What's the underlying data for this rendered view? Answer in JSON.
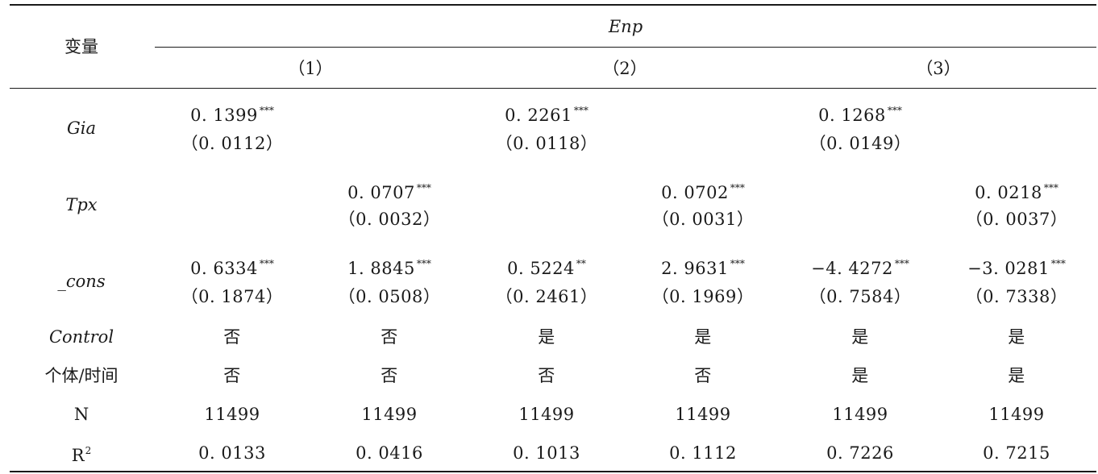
{
  "table": {
    "var_header": "变量",
    "group_header": "Enp",
    "col_groups": [
      "（1）",
      "（2）",
      "（3）"
    ],
    "rows": [
      {
        "label": "Gia",
        "italic": true,
        "coef": [
          "0. 1399",
          "",
          "0. 2261",
          "",
          "0. 1268",
          ""
        ],
        "stars": [
          "***",
          "",
          "***",
          "",
          "***",
          ""
        ],
        "se": [
          "（0. 0112）",
          "",
          "（0. 0118）",
          "",
          "（0. 0149）",
          ""
        ]
      },
      {
        "label": "Tpx",
        "italic": true,
        "coef": [
          "",
          "0. 0707",
          "",
          "0. 0702",
          "",
          "0. 0218"
        ],
        "stars": [
          "",
          "***",
          "",
          "***",
          "",
          "***"
        ],
        "se": [
          "",
          "（0. 0032）",
          "",
          "（0. 0031）",
          "",
          "（0. 0037）"
        ]
      },
      {
        "label": "_cons",
        "italic": true,
        "coef": [
          "0. 6334",
          "1. 8845",
          "0. 5224",
          "2. 9631",
          "−4. 4272",
          "−3. 0281"
        ],
        "stars": [
          "***",
          "***",
          "**",
          "***",
          "***",
          "***"
        ],
        "se": [
          "（0. 1874）",
          "（0. 0508）",
          "（0. 2461）",
          "（0. 1969）",
          "（0. 7584）",
          "（0. 7338）"
        ]
      }
    ],
    "control": {
      "label": "Control",
      "values": [
        "否",
        "否",
        "是",
        "是",
        "是",
        "是"
      ]
    },
    "fixed": {
      "label": "个体/时间",
      "values": [
        "否",
        "否",
        "否",
        "否",
        "是",
        "是"
      ]
    },
    "n": {
      "label": "N",
      "values": [
        "11499",
        "11499",
        "11499",
        "11499",
        "11499",
        "11499"
      ]
    },
    "r2": {
      "label": "R",
      "sup": "2",
      "values": [
        "0. 0133",
        "0. 0416",
        "0. 1013",
        "0. 1112",
        "0. 7226",
        "0. 7215"
      ]
    }
  }
}
